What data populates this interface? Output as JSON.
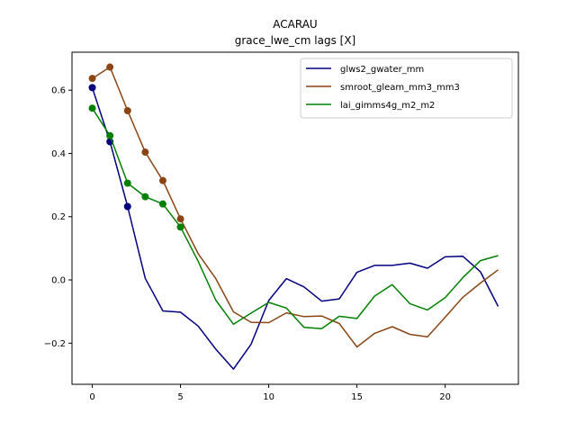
{
  "chart_data": {
    "type": "line",
    "title": "ACARAU",
    "subtitle": "grace_lwe_cm lags [X]",
    "xlabel": "",
    "ylabel": "",
    "xlim": [
      -1.15,
      24.15
    ],
    "ylim": [
      -0.33,
      0.72
    ],
    "x_ticks": [
      0,
      5,
      10,
      15,
      20
    ],
    "y_ticks": [
      -0.2,
      0.0,
      0.2,
      0.4,
      0.6
    ],
    "y_tick_labels": [
      "−0.2",
      "0.0",
      "0.2",
      "0.4",
      "0.6"
    ],
    "x": [
      0,
      1,
      2,
      3,
      4,
      5,
      6,
      7,
      8,
      9,
      10,
      11,
      12,
      13,
      14,
      15,
      16,
      17,
      18,
      19,
      20,
      21,
      22,
      23
    ],
    "legend_position": "top-right",
    "series": [
      {
        "name": "glws2_gwater_mm",
        "color": "#00007f",
        "values": [
          0.608,
          0.437,
          0.232,
          0.005,
          -0.098,
          -0.102,
          -0.146,
          -0.219,
          -0.282,
          -0.203,
          -0.065,
          0.004,
          -0.022,
          -0.067,
          -0.06,
          0.024,
          0.046,
          0.046,
          0.053,
          0.037,
          0.073,
          0.075,
          0.026,
          -0.084
        ],
        "markers": [
          0,
          1,
          2
        ]
      },
      {
        "name": "smroot_gleam_mm3_mm3",
        "color": "#8b4513",
        "values": [
          0.637,
          0.673,
          0.535,
          0.404,
          0.314,
          0.193,
          0.083,
          0.004,
          -0.101,
          -0.134,
          -0.135,
          -0.104,
          -0.116,
          -0.114,
          -0.138,
          -0.212,
          -0.169,
          -0.148,
          -0.172,
          -0.18,
          -0.118,
          -0.055,
          -0.01,
          0.032
        ],
        "markers": [
          0,
          1,
          2,
          3,
          4,
          5
        ]
      },
      {
        "name": "lai_gimms4g_m2_m2",
        "color": "#008000",
        "values": [
          0.543,
          0.456,
          0.306,
          0.263,
          0.24,
          0.167,
          0.059,
          -0.064,
          -0.14,
          -0.105,
          -0.071,
          -0.089,
          -0.15,
          -0.154,
          -0.115,
          -0.122,
          -0.051,
          -0.015,
          -0.075,
          -0.095,
          -0.056,
          0.007,
          0.061,
          0.077
        ],
        "markers": [
          0,
          1,
          2,
          3,
          4,
          5
        ]
      }
    ]
  }
}
